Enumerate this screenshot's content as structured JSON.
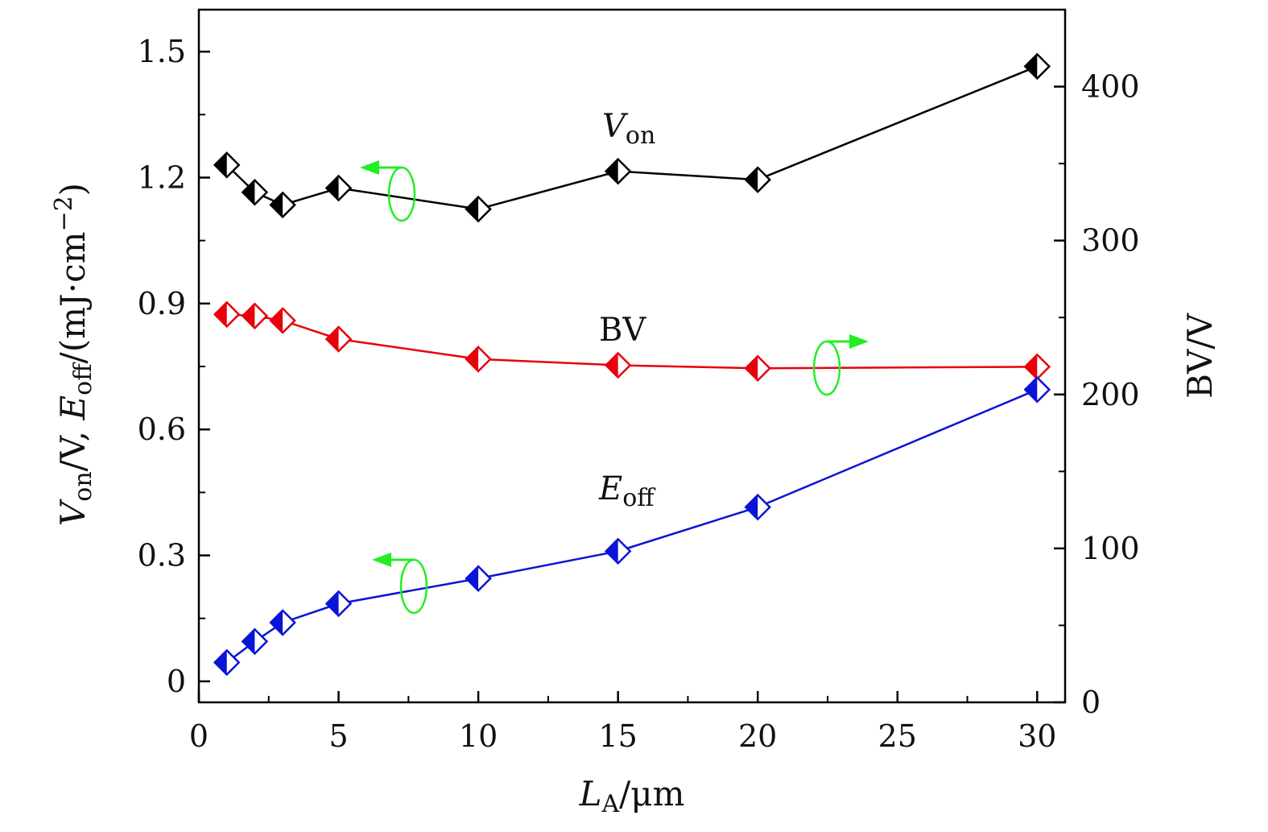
{
  "chart_data": {
    "type": "line",
    "title": "",
    "xlabel": {
      "main": "L",
      "sub": "A",
      "rest": "/μm"
    },
    "ylabel_left": {
      "v": "V",
      "v_sub": "on",
      "mid": "/V, ",
      "e": "E",
      "e_sub": "off",
      "tail": "/(mJ·cm",
      "sup": "−2",
      "end": ")"
    },
    "ylabel_right": "BV/V",
    "xlim": [
      0,
      31
    ],
    "ylim_left": [
      -0.05,
      1.6
    ],
    "ylim_right": [
      0,
      450
    ],
    "x_ticks": [
      "0",
      "5",
      "10",
      "15",
      "20",
      "25",
      "30"
    ],
    "y_left_ticks": [
      "0",
      "0.3",
      "0.6",
      "0.9",
      "1.2",
      "1.5"
    ],
    "y_right_ticks": [
      "0",
      "100",
      "200",
      "300",
      "400"
    ],
    "grid": false,
    "series": [
      {
        "name": "V_on",
        "axis": "left",
        "color": "#000000",
        "x": [
          1,
          2,
          3,
          5,
          10,
          15,
          20,
          30
        ],
        "y": [
          1.23,
          1.165,
          1.135,
          1.175,
          1.125,
          1.215,
          1.195,
          1.465
        ]
      },
      {
        "name": "BV",
        "axis": "right",
        "color": "#e8000b",
        "x": [
          1,
          2,
          3,
          5,
          10,
          15,
          20,
          30
        ],
        "y": [
          252,
          251,
          248,
          236,
          223,
          219,
          217,
          218
        ]
      },
      {
        "name": "E_off",
        "axis": "left",
        "color": "#0a14d6",
        "x": [
          1,
          2,
          3,
          5,
          10,
          15,
          20,
          30
        ],
        "y": [
          0.045,
          0.095,
          0.14,
          0.185,
          0.245,
          0.31,
          0.415,
          0.695
        ]
      }
    ],
    "annotations": [
      {
        "id": "von",
        "main": "V",
        "sub": "on"
      },
      {
        "id": "bv",
        "text": "BV"
      },
      {
        "id": "eoff",
        "main": "E",
        "sub": "off"
      }
    ],
    "arrow_color": "#22ee22"
  }
}
